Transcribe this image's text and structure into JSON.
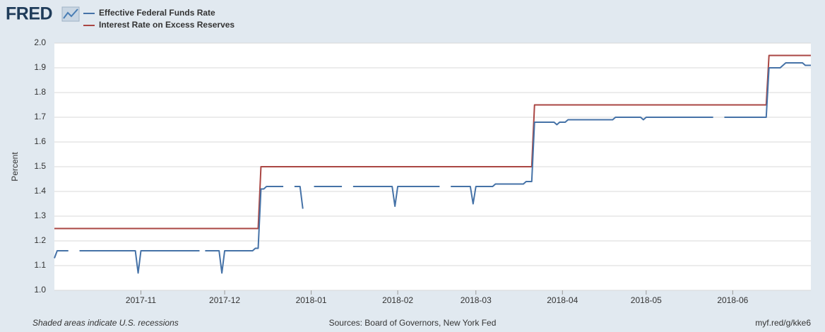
{
  "logo": "FRED",
  "footer": {
    "note": "Shaded areas indicate U.S. recessions",
    "sources": "Sources: Board of Governors, New York Fed",
    "link": "myf.red/g/kke6"
  },
  "chart_data": {
    "type": "line",
    "y_label": "Percent",
    "ylim": [
      1.0,
      2.0
    ],
    "yticks": [
      {
        "value": 1.0,
        "label": "1.0"
      },
      1.1,
      1.2,
      1.3,
      1.4,
      1.5,
      1.6,
      1.7,
      1.8,
      1.9,
      {
        "value": 2.0,
        "label": "2.0"
      }
    ],
    "grid": true,
    "legend": "top-left",
    "categories": [
      null,
      null,
      null,
      null,
      null,
      null,
      null,
      null,
      null,
      null,
      null,
      null,
      null,
      null,
      null,
      null,
      null,
      null,
      null,
      null,
      null,
      null,
      null,
      null,
      null,
      null,
      null,
      null,
      null,
      null,
      null,
      "2017-11",
      null,
      null,
      null,
      null,
      null,
      null,
      null,
      null,
      null,
      null,
      null,
      null,
      null,
      null,
      null,
      null,
      null,
      null,
      null,
      null,
      null,
      null,
      null,
      null,
      null,
      null,
      null,
      null,
      null,
      "2017-12",
      null,
      null,
      null,
      null,
      null,
      null,
      null,
      null,
      null,
      null,
      null,
      null,
      null,
      null,
      null,
      null,
      null,
      null,
      null,
      null,
      null,
      null,
      null,
      null,
      null,
      null,
      null,
      null,
      null,
      null,
      "2018-01",
      null,
      null,
      null,
      null,
      null,
      null,
      null,
      null,
      null,
      null,
      null,
      null,
      null,
      null,
      null,
      null,
      null,
      null,
      null,
      null,
      null,
      null,
      null,
      null,
      null,
      null,
      null,
      null,
      null,
      null,
      "2018-02",
      null,
      null,
      null,
      null,
      null,
      null,
      null,
      null,
      null,
      null,
      null,
      null,
      null,
      null,
      null,
      null,
      null,
      null,
      null,
      null,
      null,
      null,
      null,
      null,
      null,
      null,
      null,
      "2018-03",
      null,
      null,
      null,
      null,
      null,
      null,
      null,
      null,
      null,
      null,
      null,
      null,
      null,
      null,
      null,
      null,
      null,
      null,
      null,
      null,
      null,
      null,
      null,
      null,
      null,
      null,
      null,
      null,
      null,
      null,
      "2018-04",
      null,
      null,
      null,
      null,
      null,
      null,
      null,
      null,
      null,
      null,
      null,
      null,
      null,
      null,
      null,
      null,
      null,
      null,
      null,
      null,
      null,
      null,
      null,
      null,
      null,
      null,
      null,
      null,
      null,
      "2018-05",
      null,
      null,
      null,
      null,
      null,
      null,
      null,
      null,
      null,
      null,
      null,
      null,
      null,
      null,
      null,
      null,
      null,
      null,
      null,
      null,
      null,
      null,
      null,
      null,
      null,
      null,
      null,
      null,
      null,
      null,
      "2018-06",
      null,
      null,
      null,
      null,
      null,
      null,
      null,
      null,
      null,
      null,
      null,
      null,
      null,
      null,
      null,
      null,
      null,
      null,
      null,
      null,
      null,
      null,
      null,
      null,
      null,
      null,
      null,
      null
    ],
    "series": [
      {
        "name": "Effective Federal Funds Rate",
        "color": "#4572a7",
        "values": [
          1.13,
          1.16,
          1.16,
          1.16,
          1.16,
          1.16,
          null,
          null,
          null,
          1.16,
          1.16,
          1.16,
          1.16,
          1.16,
          1.16,
          1.16,
          1.16,
          1.16,
          1.16,
          1.16,
          1.16,
          1.16,
          1.16,
          1.16,
          1.16,
          1.16,
          1.16,
          1.16,
          1.16,
          1.16,
          1.07,
          1.16,
          1.16,
          1.16,
          1.16,
          1.16,
          1.16,
          1.16,
          1.16,
          1.16,
          1.16,
          1.16,
          1.16,
          1.16,
          1.16,
          1.16,
          1.16,
          1.16,
          1.16,
          1.16,
          1.16,
          1.16,
          1.16,
          null,
          1.16,
          1.16,
          1.16,
          1.16,
          1.16,
          1.16,
          1.07,
          1.16,
          1.16,
          1.16,
          1.16,
          1.16,
          1.16,
          1.16,
          1.16,
          1.16,
          1.16,
          1.16,
          1.17,
          1.17,
          1.41,
          1.41,
          1.42,
          1.42,
          1.42,
          1.42,
          1.42,
          1.42,
          1.42,
          null,
          null,
          null,
          1.42,
          1.42,
          1.42,
          1.33,
          null,
          null,
          null,
          1.42,
          1.42,
          1.42,
          1.42,
          1.42,
          1.42,
          1.42,
          1.42,
          1.42,
          1.42,
          1.42,
          null,
          null,
          null,
          1.42,
          1.42,
          1.42,
          1.42,
          1.42,
          1.42,
          1.42,
          1.42,
          1.42,
          1.42,
          1.42,
          1.42,
          1.42,
          1.42,
          1.42,
          1.34,
          1.42,
          1.42,
          1.42,
          1.42,
          1.42,
          1.42,
          1.42,
          1.42,
          1.42,
          1.42,
          1.42,
          1.42,
          1.42,
          1.42,
          1.42,
          1.42,
          null,
          null,
          null,
          1.42,
          1.42,
          1.42,
          1.42,
          1.42,
          1.42,
          1.42,
          1.42,
          1.35,
          1.42,
          1.42,
          1.42,
          1.42,
          1.42,
          1.42,
          1.42,
          1.43,
          1.43,
          1.43,
          1.43,
          1.43,
          1.43,
          1.43,
          1.43,
          1.43,
          1.43,
          1.43,
          1.44,
          1.44,
          1.44,
          1.68,
          1.68,
          1.68,
          1.68,
          1.68,
          1.68,
          1.68,
          1.68,
          1.67,
          1.68,
          1.68,
          1.68,
          1.69,
          1.69,
          1.69,
          1.69,
          1.69,
          1.69,
          1.69,
          1.69,
          1.69,
          1.69,
          1.69,
          1.69,
          1.69,
          1.69,
          1.69,
          1.69,
          1.69,
          1.7,
          1.7,
          1.7,
          1.7,
          1.7,
          1.7,
          1.7,
          1.7,
          1.7,
          1.7,
          1.69,
          1.7,
          1.7,
          1.7,
          1.7,
          1.7,
          1.7,
          1.7,
          1.7,
          1.7,
          1.7,
          1.7,
          1.7,
          1.7,
          1.7,
          1.7,
          1.7,
          1.7,
          1.7,
          1.7,
          1.7,
          1.7,
          1.7,
          1.7,
          1.7,
          1.7,
          null,
          null,
          null,
          1.7,
          1.7,
          1.7,
          1.7,
          1.7,
          1.7,
          1.7,
          1.7,
          1.7,
          1.7,
          1.7,
          1.7,
          1.7,
          1.7,
          1.7,
          1.7,
          1.9,
          1.9,
          1.9,
          1.9,
          1.9,
          1.91,
          1.92,
          1.92,
          1.92,
          1.92,
          1.92,
          1.92,
          1.92,
          1.91,
          1.91,
          1.91
        ]
      },
      {
        "name": "Interest Rate on Excess Reserves",
        "color": "#aa4643",
        "values": [
          1.25,
          1.25,
          1.25,
          1.25,
          1.25,
          1.25,
          1.25,
          1.25,
          1.25,
          1.25,
          1.25,
          1.25,
          1.25,
          1.25,
          1.25,
          1.25,
          1.25,
          1.25,
          1.25,
          1.25,
          1.25,
          1.25,
          1.25,
          1.25,
          1.25,
          1.25,
          1.25,
          1.25,
          1.25,
          1.25,
          1.25,
          1.25,
          1.25,
          1.25,
          1.25,
          1.25,
          1.25,
          1.25,
          1.25,
          1.25,
          1.25,
          1.25,
          1.25,
          1.25,
          1.25,
          1.25,
          1.25,
          1.25,
          1.25,
          1.25,
          1.25,
          1.25,
          1.25,
          1.25,
          1.25,
          1.25,
          1.25,
          1.25,
          1.25,
          1.25,
          1.25,
          1.25,
          1.25,
          1.25,
          1.25,
          1.25,
          1.25,
          1.25,
          1.25,
          1.25,
          1.25,
          1.25,
          1.25,
          1.25,
          1.5,
          1.5,
          1.5,
          1.5,
          1.5,
          1.5,
          1.5,
          1.5,
          1.5,
          1.5,
          1.5,
          1.5,
          1.5,
          1.5,
          1.5,
          1.5,
          1.5,
          1.5,
          1.5,
          1.5,
          1.5,
          1.5,
          1.5,
          1.5,
          1.5,
          1.5,
          1.5,
          1.5,
          1.5,
          1.5,
          1.5,
          1.5,
          1.5,
          1.5,
          1.5,
          1.5,
          1.5,
          1.5,
          1.5,
          1.5,
          1.5,
          1.5,
          1.5,
          1.5,
          1.5,
          1.5,
          1.5,
          1.5,
          1.5,
          1.5,
          1.5,
          1.5,
          1.5,
          1.5,
          1.5,
          1.5,
          1.5,
          1.5,
          1.5,
          1.5,
          1.5,
          1.5,
          1.5,
          1.5,
          1.5,
          1.5,
          1.5,
          1.5,
          1.5,
          1.5,
          1.5,
          1.5,
          1.5,
          1.5,
          1.5,
          1.5,
          1.5,
          1.5,
          1.5,
          1.5,
          1.5,
          1.5,
          1.5,
          1.5,
          1.5,
          1.5,
          1.5,
          1.5,
          1.5,
          1.5,
          1.5,
          1.5,
          1.5,
          1.5,
          1.5,
          1.5,
          1.5,
          1.5,
          1.75,
          1.75,
          1.75,
          1.75,
          1.75,
          1.75,
          1.75,
          1.75,
          1.75,
          1.75,
          1.75,
          1.75,
          1.75,
          1.75,
          1.75,
          1.75,
          1.75,
          1.75,
          1.75,
          1.75,
          1.75,
          1.75,
          1.75,
          1.75,
          1.75,
          1.75,
          1.75,
          1.75,
          1.75,
          1.75,
          1.75,
          1.75,
          1.75,
          1.75,
          1.75,
          1.75,
          1.75,
          1.75,
          1.75,
          1.75,
          1.75,
          1.75,
          1.75,
          1.75,
          1.75,
          1.75,
          1.75,
          1.75,
          1.75,
          1.75,
          1.75,
          1.75,
          1.75,
          1.75,
          1.75,
          1.75,
          1.75,
          1.75,
          1.75,
          1.75,
          1.75,
          1.75,
          1.75,
          1.75,
          1.75,
          1.75,
          1.75,
          1.75,
          1.75,
          1.75,
          1.75,
          1.75,
          1.75,
          1.75,
          1.75,
          1.75,
          1.75,
          1.75,
          1.75,
          1.75,
          1.75,
          1.75,
          1.75,
          1.75,
          1.95,
          1.95,
          1.95,
          1.95,
          1.95,
          1.95,
          1.95,
          1.95,
          1.95,
          1.95,
          1.95,
          1.95,
          1.95,
          1.95,
          1.95,
          1.95
        ]
      }
    ]
  }
}
